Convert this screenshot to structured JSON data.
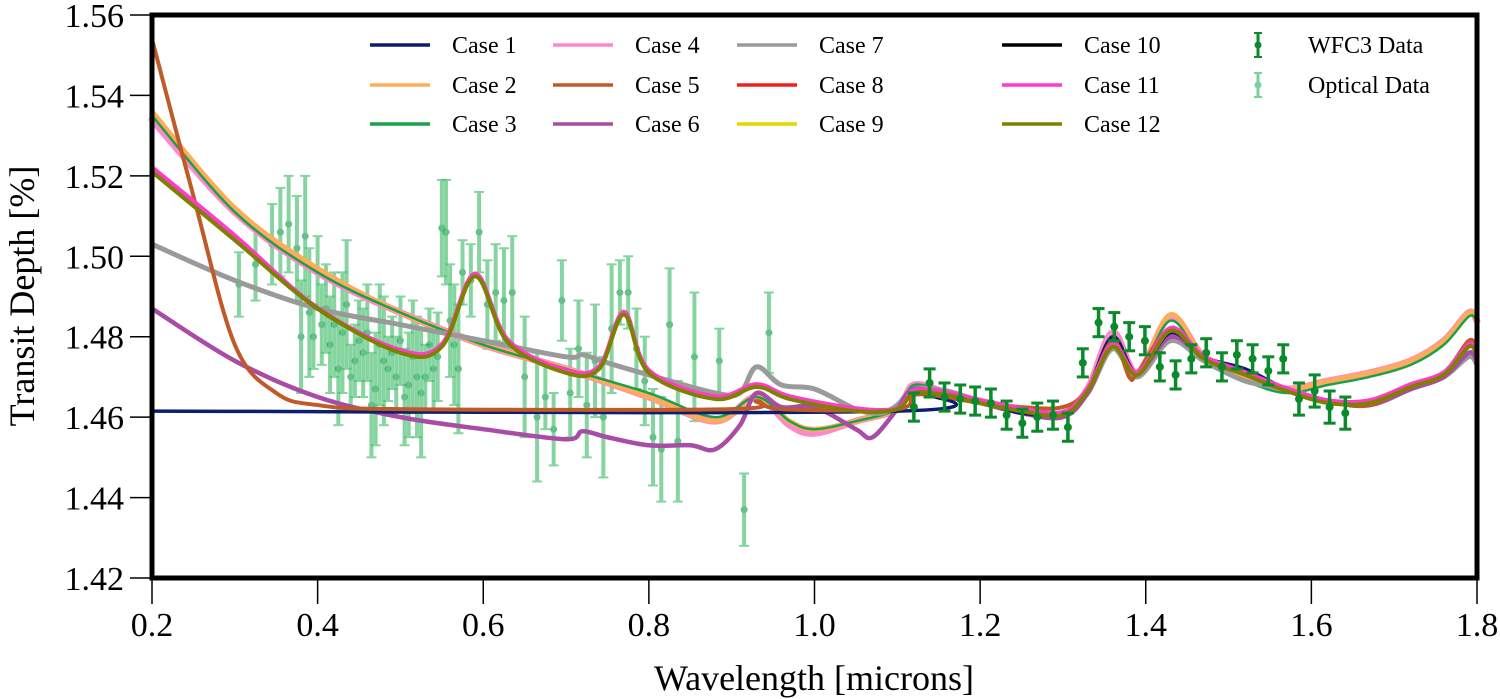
{
  "chart_data": {
    "type": "line",
    "title": "",
    "xlabel": "Wavelength [microns]",
    "ylabel": "Transit Depth [%]",
    "xlim": [
      0.2,
      1.8
    ],
    "ylim": [
      1.42,
      1.56
    ],
    "xticks": [
      0.2,
      0.4,
      0.6,
      0.8,
      1.0,
      1.2,
      1.4,
      1.6,
      1.8
    ],
    "xtick_labels": [
      "0.2",
      "0.4",
      "0.6",
      "0.8",
      "1.0",
      "1.2",
      "1.4",
      "1.6",
      "1.8"
    ],
    "yticks": [
      1.42,
      1.44,
      1.46,
      1.48,
      1.5,
      1.52,
      1.54,
      1.56
    ],
    "ytick_labels": [
      "1.42",
      "1.44",
      "1.46",
      "1.48",
      "1.50",
      "1.52",
      "1.54",
      "1.56"
    ],
    "grid": false,
    "legend_position": "top",
    "series": [
      {
        "name": "Case 1",
        "color": "#0b1f6e",
        "x": [
          0.2,
          1.1,
          1.12,
          1.16,
          1.2,
          1.25,
          1.3,
          1.33,
          1.36,
          1.39,
          1.43,
          1.47,
          1.52,
          1.57,
          1.62,
          1.67,
          1.72,
          1.76,
          1.79,
          1.8
        ],
        "y": [
          1.4615,
          1.4615,
          1.4665,
          1.466,
          1.464,
          1.461,
          1.461,
          1.467,
          1.48,
          1.471,
          1.481,
          1.475,
          1.472,
          1.467,
          1.464,
          1.463,
          1.468,
          1.471,
          1.478,
          1.476
        ]
      },
      {
        "name": "Case 2",
        "color": "#ffac5a",
        "x": [
          0.2,
          0.3,
          0.4,
          0.5,
          0.6,
          0.7,
          0.8,
          0.88,
          0.93,
          0.97,
          1.0,
          1.05,
          1.1,
          1.12,
          1.16,
          1.2,
          1.25,
          1.3,
          1.33,
          1.36,
          1.39,
          1.43,
          1.47,
          1.52,
          1.57,
          1.62,
          1.67,
          1.72,
          1.76,
          1.79,
          1.8
        ],
        "y": [
          1.536,
          1.512,
          1.497,
          1.486,
          1.478,
          1.472,
          1.465,
          1.459,
          1.465,
          1.459,
          1.457,
          1.459,
          1.462,
          1.4675,
          1.466,
          1.464,
          1.462,
          1.461,
          1.467,
          1.479,
          1.471,
          1.4855,
          1.475,
          1.47,
          1.467,
          1.469,
          1.471,
          1.474,
          1.479,
          1.486,
          1.484
        ]
      },
      {
        "name": "Case 3",
        "color": "#1aa24a",
        "x": [
          0.2,
          0.3,
          0.4,
          0.5,
          0.6,
          0.7,
          0.8,
          0.88,
          0.93,
          0.97,
          1.0,
          1.05,
          1.1,
          1.12,
          1.16,
          1.2,
          1.25,
          1.3,
          1.33,
          1.36,
          1.39,
          1.43,
          1.47,
          1.52,
          1.57,
          1.62,
          1.67,
          1.72,
          1.76,
          1.79,
          1.8
        ],
        "y": [
          1.535,
          1.511,
          1.496,
          1.486,
          1.478,
          1.472,
          1.466,
          1.46,
          1.465,
          1.459,
          1.457,
          1.459,
          1.462,
          1.468,
          1.466,
          1.464,
          1.462,
          1.461,
          1.467,
          1.48,
          1.471,
          1.484,
          1.474,
          1.469,
          1.466,
          1.468,
          1.47,
          1.473,
          1.478,
          1.485,
          1.484
        ]
      },
      {
        "name": "Case 4",
        "color": "#ff88c8",
        "x": [
          0.2,
          0.3,
          0.4,
          0.5,
          0.6,
          0.7,
          0.8,
          0.88,
          0.93,
          0.97,
          1.0,
          1.05,
          1.1,
          1.12,
          1.16,
          1.2,
          1.25,
          1.3,
          1.33,
          1.36,
          1.39,
          1.43,
          1.47,
          1.52,
          1.57,
          1.62,
          1.67,
          1.72,
          1.76,
          1.79,
          1.8
        ],
        "y": [
          1.534,
          1.511,
          1.496,
          1.486,
          1.478,
          1.472,
          1.465,
          1.459,
          1.465,
          1.458,
          1.456,
          1.459,
          1.462,
          1.468,
          1.466,
          1.464,
          1.462,
          1.461,
          1.467,
          1.481,
          1.471,
          1.485,
          1.475,
          1.47,
          1.467,
          1.469,
          1.471,
          1.474,
          1.479,
          1.486,
          1.484
        ]
      },
      {
        "name": "Case 5",
        "color": "#c05a28",
        "x": [
          0.2,
          0.25,
          0.3,
          0.35,
          0.4,
          0.5,
          0.9,
          0.93,
          0.96,
          1.1,
          1.12,
          1.16,
          1.2,
          1.25,
          1.3,
          1.33,
          1.36,
          1.38,
          1.39,
          1.43,
          1.47,
          1.52,
          1.57,
          1.62,
          1.67,
          1.72,
          1.76,
          1.79,
          1.8
        ],
        "y": [
          1.554,
          1.515,
          1.478,
          1.466,
          1.463,
          1.462,
          1.462,
          1.464,
          1.462,
          1.462,
          1.4655,
          1.465,
          1.4635,
          1.4625,
          1.4625,
          1.467,
          1.479,
          1.47,
          1.471,
          1.482,
          1.475,
          1.471,
          1.467,
          1.464,
          1.463,
          1.468,
          1.471,
          1.479,
          1.477
        ]
      },
      {
        "name": "Case 6",
        "color": "#a94ca6",
        "x": [
          0.2,
          0.3,
          0.4,
          0.5,
          0.6,
          0.7,
          0.72,
          0.75,
          0.8,
          0.85,
          0.88,
          0.91,
          0.93,
          0.96,
          1.0,
          1.05,
          1.07,
          1.1,
          1.12,
          1.16,
          1.2,
          1.25,
          1.3,
          1.33,
          1.36,
          1.39,
          1.43,
          1.47,
          1.52,
          1.57,
          1.62,
          1.67,
          1.72,
          1.76,
          1.79,
          1.8
        ],
        "y": [
          1.487,
          1.474,
          1.465,
          1.46,
          1.457,
          1.4545,
          1.4565,
          1.455,
          1.453,
          1.453,
          1.452,
          1.458,
          1.466,
          1.4625,
          1.4625,
          1.457,
          1.455,
          1.462,
          1.467,
          1.465,
          1.4635,
          1.461,
          1.46,
          1.466,
          1.478,
          1.471,
          1.48,
          1.475,
          1.471,
          1.467,
          1.464,
          1.463,
          1.467,
          1.47,
          1.476,
          1.474
        ]
      },
      {
        "name": "Case 7",
        "color": "#9a9a9a",
        "x": [
          0.2,
          0.3,
          0.4,
          0.5,
          0.6,
          0.7,
          0.72,
          0.75,
          0.8,
          0.88,
          0.91,
          0.93,
          0.96,
          1.0,
          1.05,
          1.08,
          1.1,
          1.12,
          1.16,
          1.2,
          1.25,
          1.3,
          1.33,
          1.36,
          1.39,
          1.43,
          1.47,
          1.52,
          1.57,
          1.62,
          1.67,
          1.72,
          1.76,
          1.79,
          1.8
        ],
        "y": [
          1.503,
          1.494,
          1.487,
          1.483,
          1.479,
          1.475,
          1.4755,
          1.4735,
          1.4705,
          1.466,
          1.466,
          1.4725,
          1.468,
          1.467,
          1.462,
          1.461,
          1.463,
          1.467,
          1.4665,
          1.464,
          1.462,
          1.461,
          1.466,
          1.477,
          1.47,
          1.479,
          1.474,
          1.469,
          1.467,
          1.464,
          1.463,
          1.467,
          1.47,
          1.475,
          1.473
        ]
      },
      {
        "name": "Case 8",
        "color": "#f02020",
        "x": [
          0.2,
          0.3,
          0.4,
          0.5,
          0.55,
          0.59,
          0.63,
          0.7,
          0.74,
          0.77,
          0.8,
          0.88,
          0.93,
          0.97,
          1.05,
          1.1,
          1.12,
          1.16,
          1.2,
          1.25,
          1.3,
          1.33,
          1.36,
          1.39,
          1.43,
          1.47,
          1.52,
          1.57,
          1.62,
          1.67,
          1.72,
          1.76,
          1.79,
          1.8
        ],
        "y": [
          1.522,
          1.505,
          1.487,
          1.4765,
          1.478,
          1.4955,
          1.479,
          1.4715,
          1.4725,
          1.486,
          1.4715,
          1.465,
          1.468,
          1.465,
          1.462,
          1.462,
          1.4665,
          1.466,
          1.464,
          1.462,
          1.461,
          1.467,
          1.478,
          1.471,
          1.482,
          1.475,
          1.471,
          1.467,
          1.464,
          1.464,
          1.468,
          1.471,
          1.478,
          1.476
        ]
      },
      {
        "name": "Case 9",
        "color": "#e0d800",
        "x": [
          0.2,
          0.3,
          0.4,
          0.5,
          0.55,
          0.59,
          0.63,
          0.7,
          0.74,
          0.77,
          0.8,
          0.88,
          0.93,
          0.97,
          1.05,
          1.1,
          1.12,
          1.16,
          1.2,
          1.25,
          1.3,
          1.33,
          1.36,
          1.39,
          1.43,
          1.47,
          1.52,
          1.57,
          1.62,
          1.67,
          1.72,
          1.76,
          1.79,
          1.8
        ],
        "y": [
          1.522,
          1.505,
          1.487,
          1.4765,
          1.478,
          1.4955,
          1.479,
          1.4715,
          1.4725,
          1.486,
          1.4715,
          1.465,
          1.468,
          1.465,
          1.462,
          1.462,
          1.4665,
          1.466,
          1.464,
          1.462,
          1.461,
          1.467,
          1.478,
          1.471,
          1.482,
          1.475,
          1.471,
          1.467,
          1.464,
          1.464,
          1.468,
          1.471,
          1.478,
          1.476
        ]
      },
      {
        "name": "Case 10",
        "color": "#000000",
        "x": [
          0.2,
          0.3,
          0.4,
          0.5,
          0.55,
          0.59,
          0.63,
          0.7,
          0.74,
          0.77,
          0.8,
          0.88,
          0.93,
          0.97,
          1.05,
          1.1,
          1.12,
          1.16,
          1.2,
          1.25,
          1.3,
          1.33,
          1.36,
          1.39,
          1.43,
          1.47,
          1.52,
          1.57,
          1.62,
          1.67,
          1.72,
          1.76,
          1.79,
          1.8
        ],
        "y": [
          1.522,
          1.505,
          1.487,
          1.4765,
          1.478,
          1.4955,
          1.479,
          1.4715,
          1.4725,
          1.486,
          1.4715,
          1.465,
          1.468,
          1.465,
          1.462,
          1.462,
          1.4665,
          1.466,
          1.464,
          1.462,
          1.461,
          1.467,
          1.478,
          1.471,
          1.482,
          1.475,
          1.471,
          1.467,
          1.464,
          1.464,
          1.468,
          1.471,
          1.478,
          1.476
        ]
      },
      {
        "name": "Case 11",
        "color": "#ff3cc8",
        "x": [
          0.2,
          0.3,
          0.4,
          0.5,
          0.55,
          0.59,
          0.63,
          0.7,
          0.74,
          0.77,
          0.8,
          0.88,
          0.93,
          0.97,
          1.05,
          1.1,
          1.12,
          1.16,
          1.2,
          1.25,
          1.3,
          1.33,
          1.36,
          1.39,
          1.43,
          1.47,
          1.52,
          1.57,
          1.62,
          1.67,
          1.72,
          1.76,
          1.79,
          1.8
        ],
        "y": [
          1.5222,
          1.5052,
          1.4872,
          1.4767,
          1.4782,
          1.4957,
          1.4792,
          1.4717,
          1.4727,
          1.4862,
          1.4717,
          1.4652,
          1.4682,
          1.4652,
          1.4622,
          1.4622,
          1.4667,
          1.4662,
          1.4642,
          1.4622,
          1.4612,
          1.4672,
          1.4782,
          1.4712,
          1.4822,
          1.4752,
          1.4712,
          1.4672,
          1.4642,
          1.4642,
          1.4682,
          1.4712,
          1.4782,
          1.4762
        ]
      },
      {
        "name": "Case 12",
        "color": "#808000",
        "x": [
          0.2,
          0.3,
          0.4,
          0.5,
          0.55,
          0.59,
          0.63,
          0.7,
          0.74,
          0.77,
          0.8,
          0.88,
          0.93,
          0.97,
          1.05,
          1.1,
          1.12,
          1.16,
          1.2,
          1.25,
          1.3,
          1.33,
          1.36,
          1.39,
          1.43,
          1.47,
          1.52,
          1.57,
          1.62,
          1.67,
          1.72,
          1.76,
          1.79,
          1.8
        ],
        "y": [
          1.521,
          1.504,
          1.487,
          1.476,
          1.4775,
          1.495,
          1.4785,
          1.471,
          1.472,
          1.4855,
          1.471,
          1.4645,
          1.4675,
          1.4645,
          1.4615,
          1.462,
          1.466,
          1.4655,
          1.4635,
          1.4615,
          1.4605,
          1.4665,
          1.4775,
          1.4705,
          1.4815,
          1.4745,
          1.4705,
          1.4665,
          1.4635,
          1.4635,
          1.4675,
          1.4705,
          1.4775,
          1.4755
        ]
      }
    ],
    "errorbar_series": [
      {
        "name": "WFC3 Data",
        "color": "#0a8a2a",
        "x": [
          1.12,
          1.139,
          1.157,
          1.176,
          1.194,
          1.213,
          1.232,
          1.251,
          1.269,
          1.288,
          1.306,
          1.324,
          1.343,
          1.362,
          1.38,
          1.399,
          1.417,
          1.436,
          1.455,
          1.473,
          1.492,
          1.51,
          1.529,
          1.548,
          1.566,
          1.585,
          1.604,
          1.622,
          1.641
        ],
        "y": [
          1.4625,
          1.4685,
          1.465,
          1.4645,
          1.464,
          1.4635,
          1.4605,
          1.4585,
          1.46,
          1.4605,
          1.4575,
          1.4735,
          1.4835,
          1.4825,
          1.48,
          1.479,
          1.4725,
          1.4705,
          1.4745,
          1.476,
          1.4725,
          1.4755,
          1.4745,
          1.4715,
          1.4745,
          1.4645,
          1.4665,
          1.4625,
          1.461
        ],
        "yerr": [
          0.0035,
          0.0035,
          0.0035,
          0.0035,
          0.0035,
          0.0035,
          0.0035,
          0.0035,
          0.0035,
          0.0035,
          0.0035,
          0.0035,
          0.0035,
          0.0035,
          0.0035,
          0.0035,
          0.0035,
          0.0035,
          0.0035,
          0.0035,
          0.0035,
          0.0035,
          0.0035,
          0.0035,
          0.0035,
          0.004,
          0.004,
          0.004,
          0.004
        ]
      },
      {
        "name": "Optical Data",
        "color": "#46be6e",
        "x": [
          0.305,
          0.325,
          0.345,
          0.355,
          0.365,
          0.375,
          0.38,
          0.385,
          0.39,
          0.395,
          0.4,
          0.405,
          0.41,
          0.415,
          0.42,
          0.425,
          0.43,
          0.435,
          0.44,
          0.445,
          0.45,
          0.455,
          0.46,
          0.465,
          0.47,
          0.475,
          0.48,
          0.485,
          0.49,
          0.495,
          0.5,
          0.505,
          0.51,
          0.515,
          0.52,
          0.525,
          0.53,
          0.535,
          0.54,
          0.545,
          0.55,
          0.555,
          0.56,
          0.565,
          0.57,
          0.575,
          0.585,
          0.595,
          0.605,
          0.615,
          0.625,
          0.635,
          0.65,
          0.665,
          0.675,
          0.685,
          0.695,
          0.705,
          0.715,
          0.725,
          0.735,
          0.745,
          0.755,
          0.765,
          0.775,
          0.785,
          0.795,
          0.805,
          0.815,
          0.825,
          0.835,
          0.855,
          0.885,
          0.915,
          0.945
        ],
        "y": [
          1.493,
          1.498,
          1.503,
          1.506,
          1.508,
          1.502,
          1.48,
          1.505,
          1.486,
          1.48,
          1.496,
          1.483,
          1.487,
          1.478,
          1.483,
          1.472,
          1.481,
          1.488,
          1.47,
          1.474,
          1.479,
          1.476,
          1.481,
          1.463,
          1.467,
          1.478,
          1.474,
          1.472,
          1.476,
          1.47,
          1.479,
          1.465,
          1.468,
          1.475,
          1.47,
          1.466,
          1.47,
          1.478,
          1.472,
          1.475,
          1.507,
          1.506,
          1.484,
          1.478,
          1.472,
          1.496,
          1.494,
          1.506,
          1.488,
          1.491,
          1.489,
          1.491,
          1.47,
          1.46,
          1.465,
          1.457,
          1.489,
          1.466,
          1.477,
          1.463,
          1.474,
          1.46,
          1.482,
          1.491,
          1.491,
          1.477,
          1.469,
          1.455,
          1.452,
          1.483,
          1.454,
          1.475,
          1.474,
          1.437,
          1.481
        ]
      }
    ],
    "legend": {
      "columns": [
        [
          "Case 1",
          "Case 2",
          "Case 3"
        ],
        [
          "Case 4",
          "Case 5",
          "Case 6"
        ],
        [
          "Case 7",
          "Case 8",
          "Case 9"
        ],
        [
          "Case 10",
          "Case 11",
          "Case 12"
        ],
        [
          "WFC3 Data",
          "Optical Data"
        ]
      ]
    }
  }
}
